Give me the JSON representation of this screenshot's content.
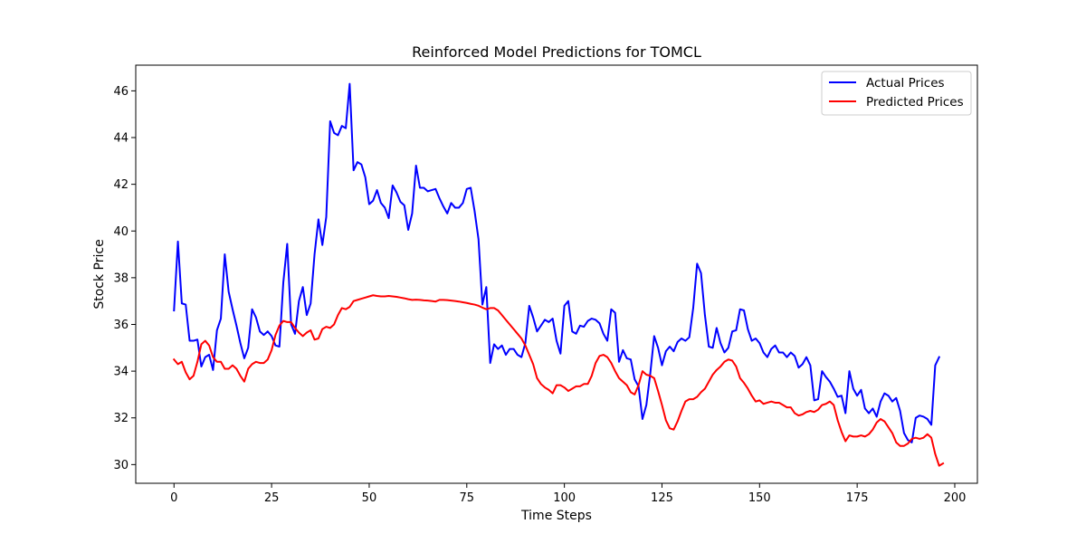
{
  "chart_data": {
    "type": "line",
    "title": "Reinforced Model Predictions for TOMCL",
    "xlabel": "Time Steps",
    "ylabel": "Stock Price",
    "xlim": [
      -9.8,
      205.8
    ],
    "ylim": [
      29.2,
      47.1
    ],
    "xticks": [
      0,
      25,
      50,
      75,
      100,
      125,
      150,
      175,
      200
    ],
    "yticks": [
      30,
      32,
      34,
      36,
      38,
      40,
      42,
      44,
      46
    ],
    "grid": false,
    "legend": "top-right",
    "series": [
      {
        "name": "Actual Prices",
        "color": "#0000ff",
        "x_start": 0,
        "values": [
          36.6,
          39.55,
          36.9,
          36.85,
          35.3,
          35.3,
          35.35,
          34.2,
          34.6,
          34.7,
          34.05,
          35.75,
          36.25,
          39.0,
          37.4,
          36.65,
          35.95,
          35.2,
          34.55,
          35.0,
          36.65,
          36.3,
          35.7,
          35.55,
          35.7,
          35.5,
          35.1,
          35.05,
          37.8,
          39.45,
          36.0,
          35.6,
          37.0,
          37.6,
          36.4,
          36.9,
          39.0,
          40.5,
          39.4,
          40.6,
          44.7,
          44.2,
          44.1,
          44.5,
          44.4,
          46.3,
          42.6,
          42.95,
          42.85,
          42.3,
          41.15,
          41.3,
          41.75,
          41.2,
          41.0,
          40.55,
          41.95,
          41.65,
          41.25,
          41.1,
          40.05,
          40.75,
          42.8,
          41.85,
          41.85,
          41.7,
          41.75,
          41.8,
          41.4,
          41.05,
          40.75,
          41.2,
          41.0,
          41.0,
          41.2,
          41.8,
          41.85,
          40.85,
          39.65,
          36.85,
          37.6,
          34.35,
          35.15,
          34.95,
          35.1,
          34.7,
          34.95,
          34.95,
          34.7,
          34.6,
          35.2,
          36.8,
          36.3,
          35.7,
          35.95,
          36.2,
          36.1,
          36.25,
          35.3,
          34.75,
          36.8,
          37.0,
          35.7,
          35.6,
          35.95,
          35.9,
          36.15,
          36.25,
          36.2,
          36.05,
          35.6,
          35.3,
          36.65,
          36.5,
          34.4,
          34.9,
          34.55,
          34.5,
          33.65,
          33.35,
          31.95,
          32.55,
          33.9,
          35.5,
          35.0,
          34.25,
          34.85,
          35.05,
          34.85,
          35.25,
          35.4,
          35.3,
          35.45,
          36.7,
          38.6,
          38.2,
          36.4,
          35.05,
          35.0,
          35.85,
          35.2,
          34.8,
          35.0,
          35.7,
          35.75,
          36.65,
          36.6,
          35.8,
          35.3,
          35.4,
          35.2,
          34.8,
          34.6,
          34.95,
          35.1,
          34.8,
          34.8,
          34.6,
          34.8,
          34.65,
          34.15,
          34.3,
          34.6,
          34.25,
          32.75,
          32.8,
          34.0,
          33.75,
          33.55,
          33.25,
          32.9,
          32.95,
          32.2,
          34.0,
          33.25,
          32.95,
          33.2,
          32.4,
          32.2,
          32.4,
          32.05,
          32.7,
          33.05,
          32.95,
          32.7,
          32.85,
          32.3,
          31.35,
          31.05,
          30.95,
          32.0,
          32.1,
          32.05,
          31.95,
          31.7,
          34.25,
          34.6
        ]
      },
      {
        "name": "Predicted Prices",
        "color": "#ff0000",
        "x_start": 0,
        "values": [
          34.5,
          34.3,
          34.4,
          33.95,
          33.65,
          33.8,
          34.4,
          35.15,
          35.3,
          35.1,
          34.6,
          34.4,
          34.4,
          34.1,
          34.1,
          34.25,
          34.1,
          33.8,
          33.55,
          34.1,
          34.3,
          34.4,
          34.35,
          34.35,
          34.5,
          34.9,
          35.55,
          35.95,
          36.15,
          36.1,
          36.1,
          35.85,
          35.65,
          35.5,
          35.65,
          35.75,
          35.35,
          35.4,
          35.8,
          35.9,
          35.85,
          36.0,
          36.4,
          36.7,
          36.65,
          36.75,
          37.0,
          37.05,
          37.1,
          37.15,
          37.2,
          37.25,
          37.22,
          37.2,
          37.2,
          37.22,
          37.2,
          37.18,
          37.15,
          37.12,
          37.08,
          37.05,
          37.06,
          37.05,
          37.03,
          37.02,
          37.0,
          36.98,
          37.05,
          37.05,
          37.04,
          37.02,
          37.0,
          36.98,
          36.95,
          36.92,
          36.88,
          36.85,
          36.8,
          36.72,
          36.65,
          36.7,
          36.7,
          36.6,
          36.4,
          36.2,
          36.0,
          35.8,
          35.6,
          35.4,
          35.1,
          34.7,
          34.3,
          33.7,
          33.45,
          33.3,
          33.2,
          33.05,
          33.4,
          33.4,
          33.3,
          33.15,
          33.25,
          33.35,
          33.35,
          33.45,
          33.45,
          33.8,
          34.35,
          34.65,
          34.7,
          34.6,
          34.35,
          34.0,
          33.7,
          33.55,
          33.4,
          33.1,
          33.0,
          33.4,
          34.0,
          33.85,
          33.8,
          33.7,
          33.15,
          32.55,
          31.9,
          31.55,
          31.5,
          31.85,
          32.3,
          32.7,
          32.8,
          32.8,
          32.9,
          33.1,
          33.25,
          33.55,
          33.85,
          34.05,
          34.2,
          34.4,
          34.5,
          34.45,
          34.2,
          33.7,
          33.5,
          33.25,
          32.95,
          32.7,
          32.75,
          32.6,
          32.65,
          32.7,
          32.65,
          32.65,
          32.55,
          32.45,
          32.45,
          32.2,
          32.1,
          32.15,
          32.25,
          32.3,
          32.25,
          32.35,
          32.55,
          32.6,
          32.7,
          32.55,
          31.9,
          31.4,
          31.0,
          31.25,
          31.2,
          31.2,
          31.25,
          31.2,
          31.3,
          31.5,
          31.8,
          31.95,
          31.85,
          31.6,
          31.35,
          30.95,
          30.8,
          30.8,
          30.9,
          31.1,
          31.15,
          31.1,
          31.15,
          31.3,
          31.15,
          30.45,
          29.95,
          30.05
        ]
      }
    ]
  }
}
